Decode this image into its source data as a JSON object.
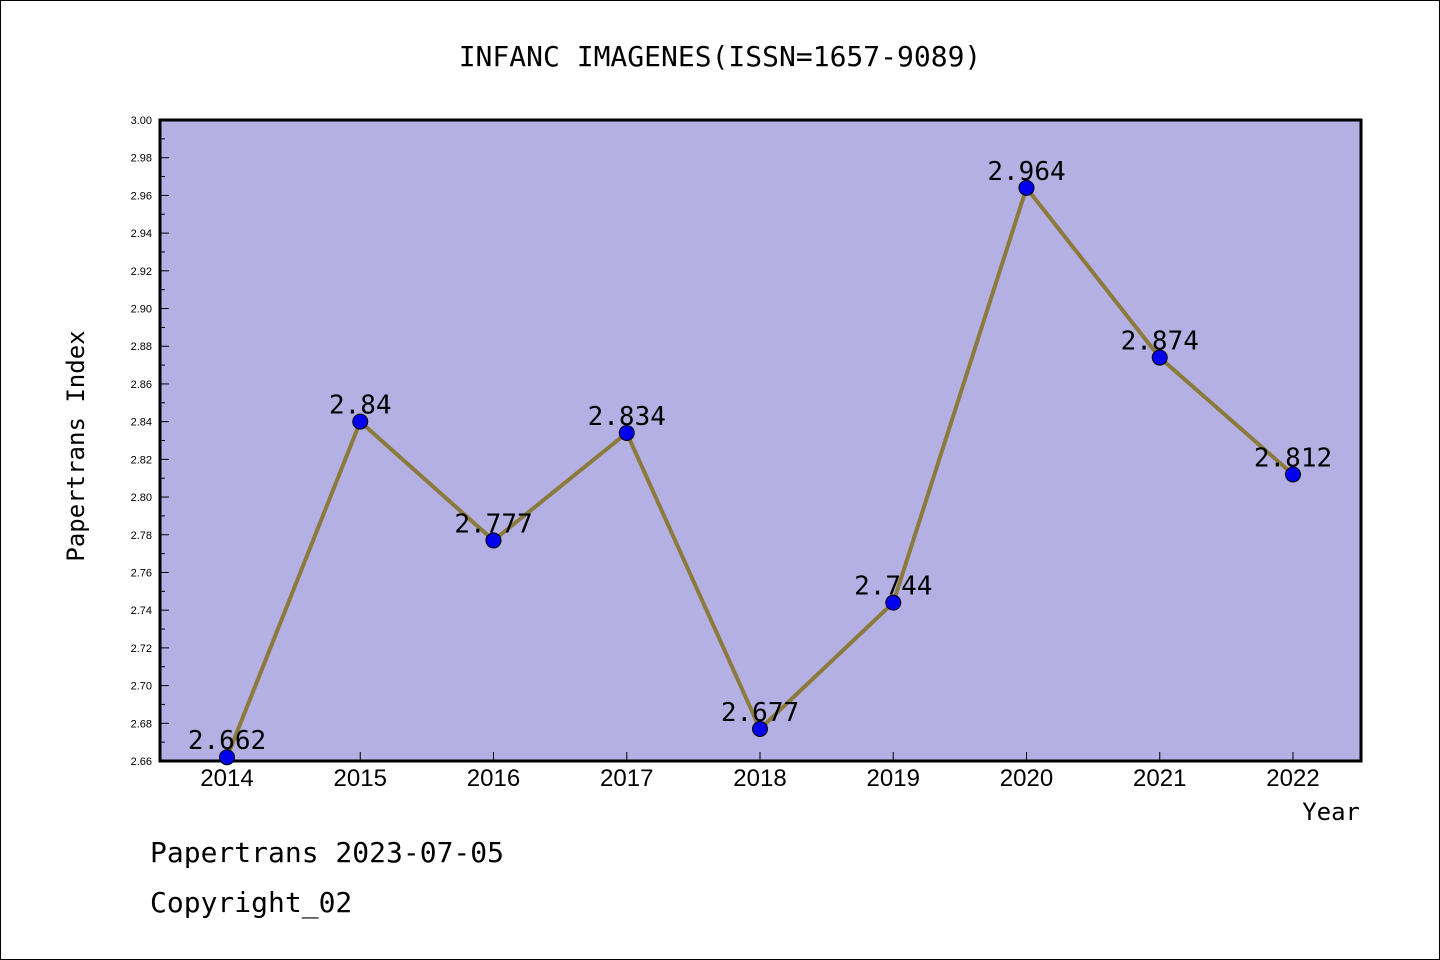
{
  "chart_data": {
    "type": "line",
    "title": "INFANC IMAGENES(ISSN=1657-9089)",
    "xlabel": "Year",
    "ylabel": "Papertrans Index",
    "categories": [
      "2014",
      "2015",
      "2016",
      "2017",
      "2018",
      "2019",
      "2020",
      "2021",
      "2022"
    ],
    "values": [
      2.662,
      2.84,
      2.777,
      2.834,
      2.677,
      2.744,
      2.964,
      2.874,
      2.812
    ],
    "data_labels": [
      "2.662",
      "2.84",
      "2.777",
      "2.834",
      "2.677",
      "2.744",
      "2.964",
      "2.874",
      "2.812"
    ],
    "ylim": [
      2.66,
      3.0
    ],
    "yticks": [
      "2.66",
      "2.68",
      "2.70",
      "2.72",
      "2.74",
      "2.76",
      "2.78",
      "2.80",
      "2.82",
      "2.84",
      "2.86",
      "2.88",
      "2.90",
      "2.92",
      "2.94",
      "2.96",
      "2.98",
      "3.00"
    ],
    "grid": false,
    "legend": "none",
    "colors": {
      "plot_bg": "#b5b0e3",
      "line": "#8c7a3c",
      "marker": "#0000ee"
    }
  },
  "footer": {
    "line1": "Papertrans 2023-07-05",
    "line2": "Copyright_02"
  }
}
